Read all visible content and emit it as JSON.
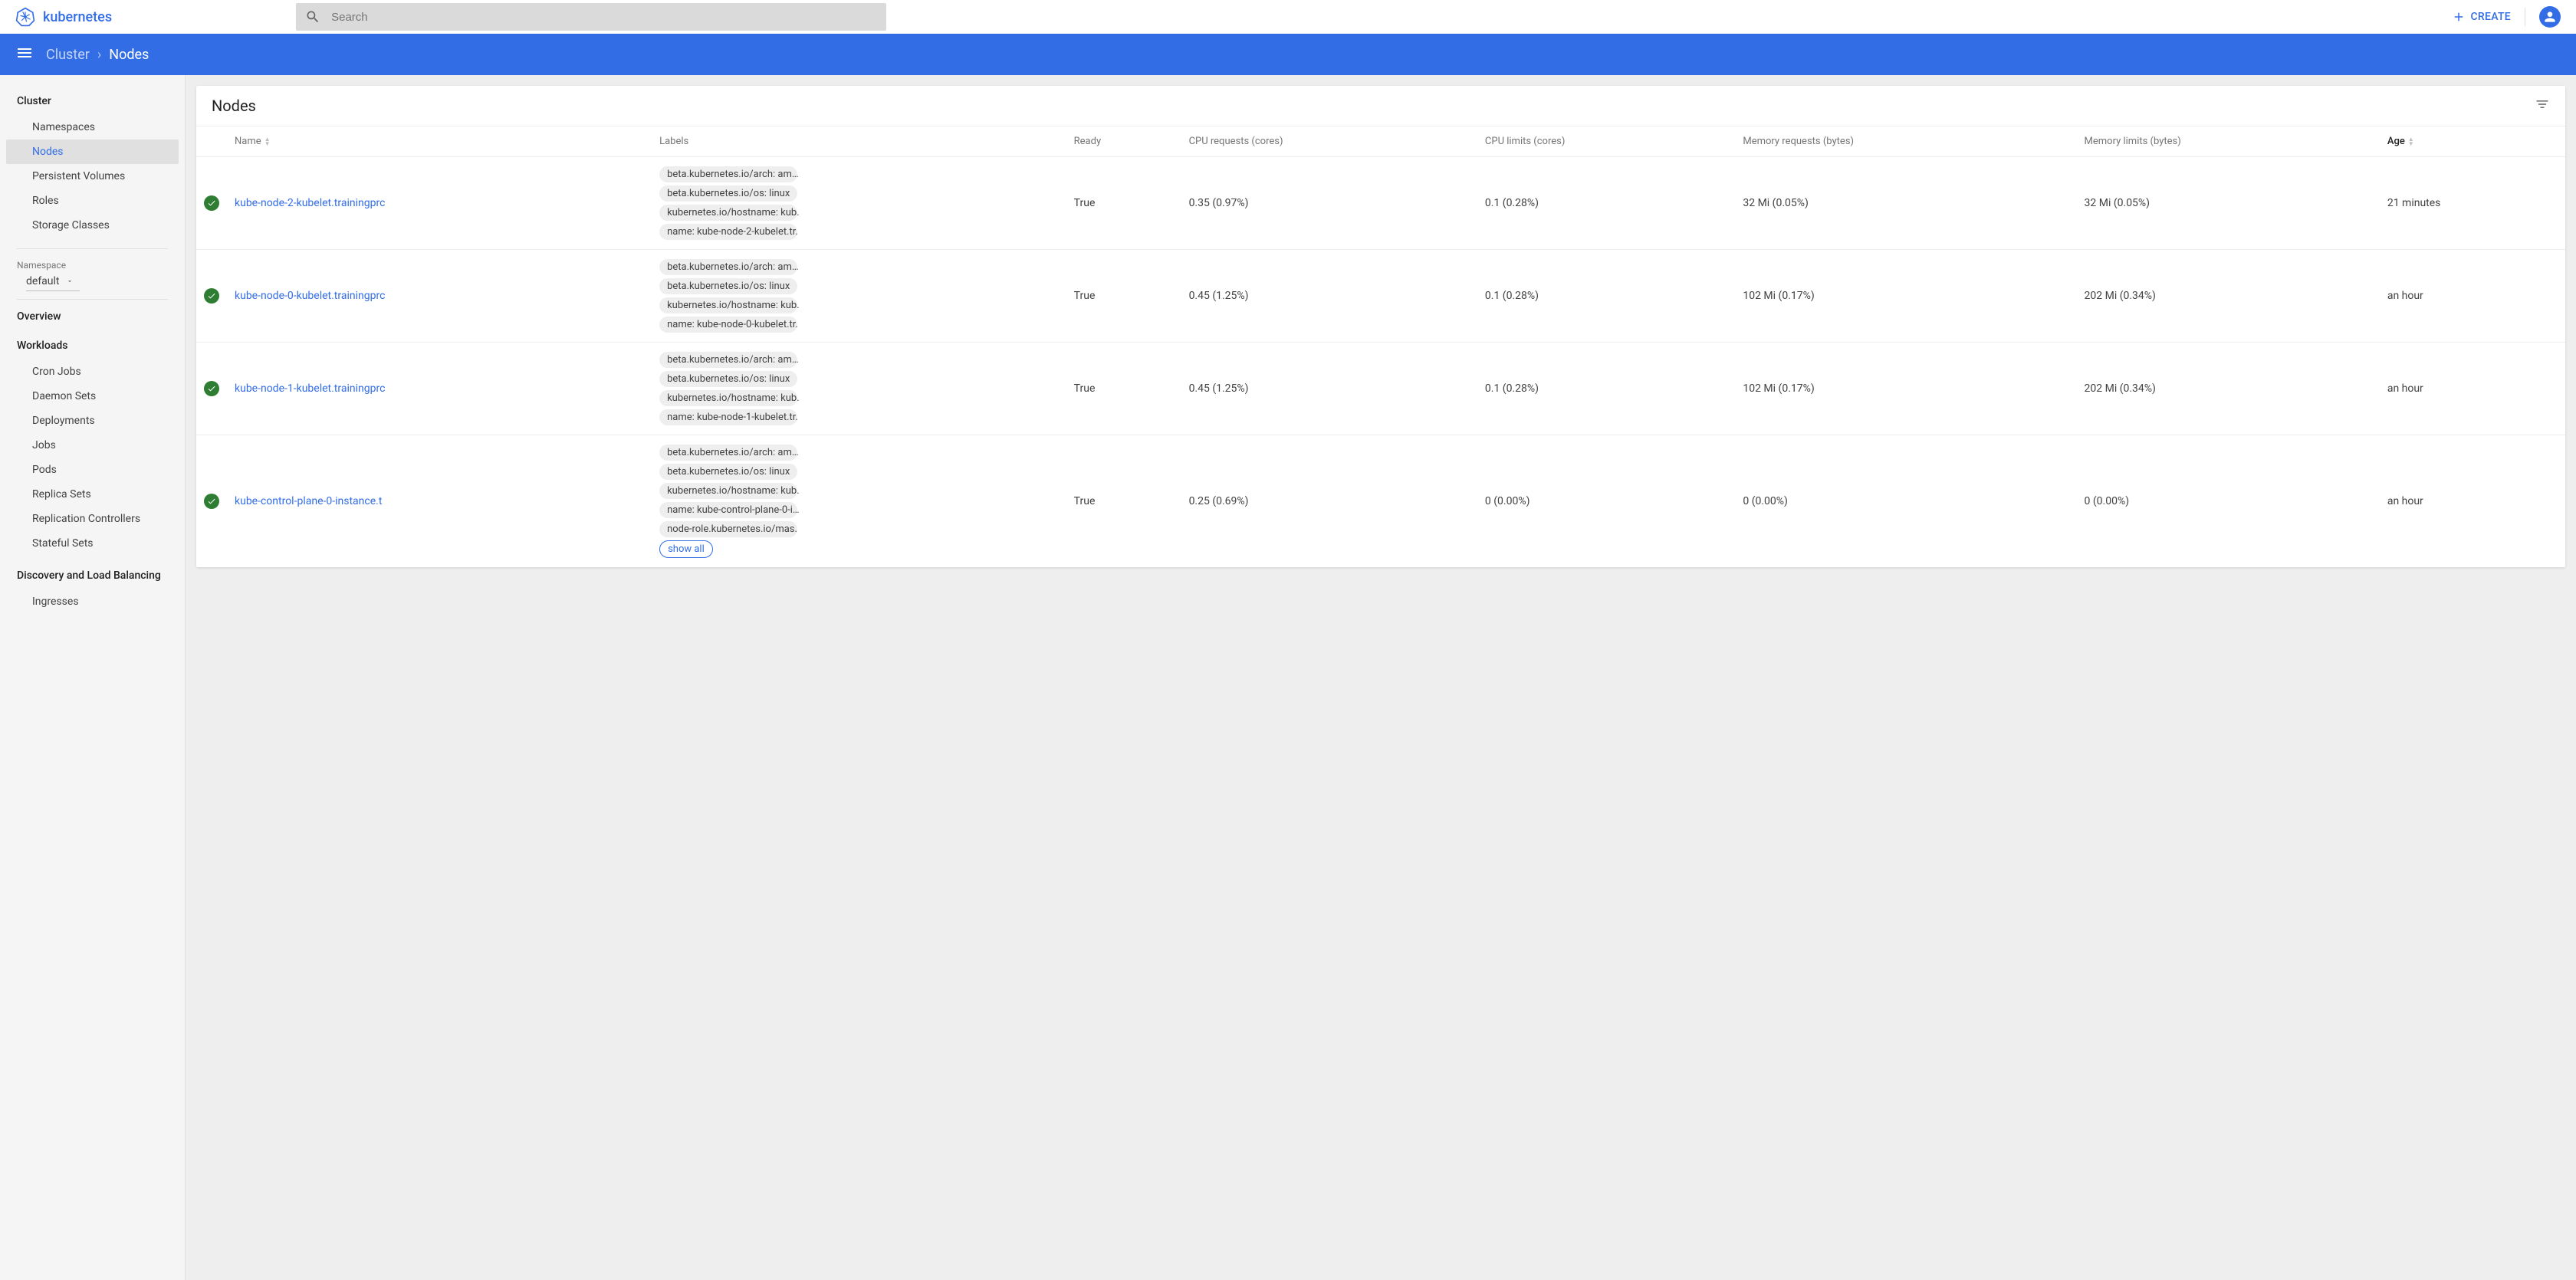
{
  "brand": "kubernetes",
  "search": {
    "placeholder": "Search"
  },
  "create_label": "CREATE",
  "breadcrumb": {
    "section": "Cluster",
    "page": "Nodes"
  },
  "sidebar": {
    "cluster_heading": "Cluster",
    "cluster_items": [
      {
        "label": "Namespaces",
        "active": false
      },
      {
        "label": "Nodes",
        "active": true
      },
      {
        "label": "Persistent Volumes",
        "active": false
      },
      {
        "label": "Roles",
        "active": false
      },
      {
        "label": "Storage Classes",
        "active": false
      }
    ],
    "namespace_label": "Namespace",
    "namespace_value": "default",
    "overview_heading": "Overview",
    "workloads_heading": "Workloads",
    "workloads_items": [
      {
        "label": "Cron Jobs"
      },
      {
        "label": "Daemon Sets"
      },
      {
        "label": "Deployments"
      },
      {
        "label": "Jobs"
      },
      {
        "label": "Pods"
      },
      {
        "label": "Replica Sets"
      },
      {
        "label": "Replication Controllers"
      },
      {
        "label": "Stateful Sets"
      }
    ],
    "discovery_heading": "Discovery and Load Balancing",
    "discovery_items": [
      {
        "label": "Ingresses"
      }
    ]
  },
  "card": {
    "title": "Nodes",
    "columns": {
      "name": "Name",
      "labels": "Labels",
      "ready": "Ready",
      "cpu_req": "CPU requests (cores)",
      "cpu_lim": "CPU limits (cores)",
      "mem_req": "Memory requests (bytes)",
      "mem_lim": "Memory limits (bytes)",
      "age": "Age"
    },
    "show_all": "show all",
    "rows": [
      {
        "name": "kube-node-2-kubelet.trainingprc",
        "labels": [
          "beta.kubernetes.io/arch: am…",
          "beta.kubernetes.io/os: linux",
          "kubernetes.io/hostname: kub.",
          "name: kube-node-2-kubelet.tr."
        ],
        "ready": "True",
        "cpu_req": "0.35 (0.97%)",
        "cpu_lim": "0.1 (0.28%)",
        "mem_req": "32 Mi (0.05%)",
        "mem_lim": "32 Mi (0.05%)",
        "age": "21 minutes",
        "show_all": false
      },
      {
        "name": "kube-node-0-kubelet.trainingprc",
        "labels": [
          "beta.kubernetes.io/arch: am…",
          "beta.kubernetes.io/os: linux",
          "kubernetes.io/hostname: kub.",
          "name: kube-node-0-kubelet.tr."
        ],
        "ready": "True",
        "cpu_req": "0.45 (1.25%)",
        "cpu_lim": "0.1 (0.28%)",
        "mem_req": "102 Mi (0.17%)",
        "mem_lim": "202 Mi (0.34%)",
        "age": "an hour",
        "show_all": false
      },
      {
        "name": "kube-node-1-kubelet.trainingprc",
        "labels": [
          "beta.kubernetes.io/arch: am…",
          "beta.kubernetes.io/os: linux",
          "kubernetes.io/hostname: kub.",
          "name: kube-node-1-kubelet.tr."
        ],
        "ready": "True",
        "cpu_req": "0.45 (1.25%)",
        "cpu_lim": "0.1 (0.28%)",
        "mem_req": "102 Mi (0.17%)",
        "mem_lim": "202 Mi (0.34%)",
        "age": "an hour",
        "show_all": false
      },
      {
        "name": "kube-control-plane-0-instance.t",
        "labels": [
          "beta.kubernetes.io/arch: am…",
          "beta.kubernetes.io/os: linux",
          "kubernetes.io/hostname: kub.",
          "name: kube-control-plane-0-i…",
          "node-role.kubernetes.io/mas."
        ],
        "ready": "True",
        "cpu_req": "0.25 (0.69%)",
        "cpu_lim": "0 (0.00%)",
        "mem_req": "0 (0.00%)",
        "mem_lim": "0 (0.00%)",
        "age": "an hour",
        "show_all": true
      }
    ]
  },
  "colors": {
    "primary": "#326de6",
    "status_ok": "#2e7d32",
    "chip_bg": "#eeeeee",
    "text_muted": "#757575"
  }
}
